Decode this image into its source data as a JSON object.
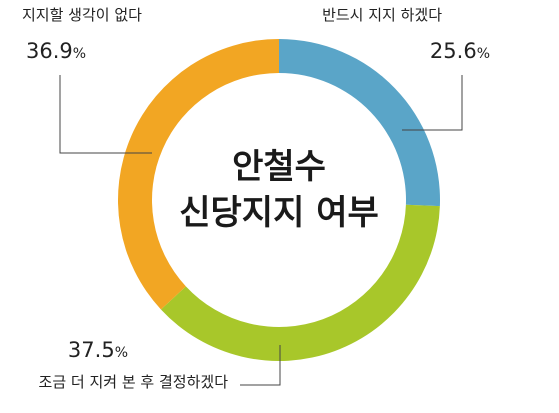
{
  "chart_data": {
    "type": "pie",
    "donut": true,
    "title_lines": [
      "안철수",
      "신당지지 여부"
    ],
    "unit": "%",
    "slices": [
      {
        "label": "반드시 지지 하겠다",
        "value": 25.6,
        "color": "#5aa5c8"
      },
      {
        "label": "조금 더 지켜 본 후 결정하겠다",
        "value": 37.5,
        "color": "#a8c72a"
      },
      {
        "label": "지지할 생각이 없다",
        "value": 36.9,
        "color": "#f2a623"
      }
    ],
    "legend": "none"
  }
}
